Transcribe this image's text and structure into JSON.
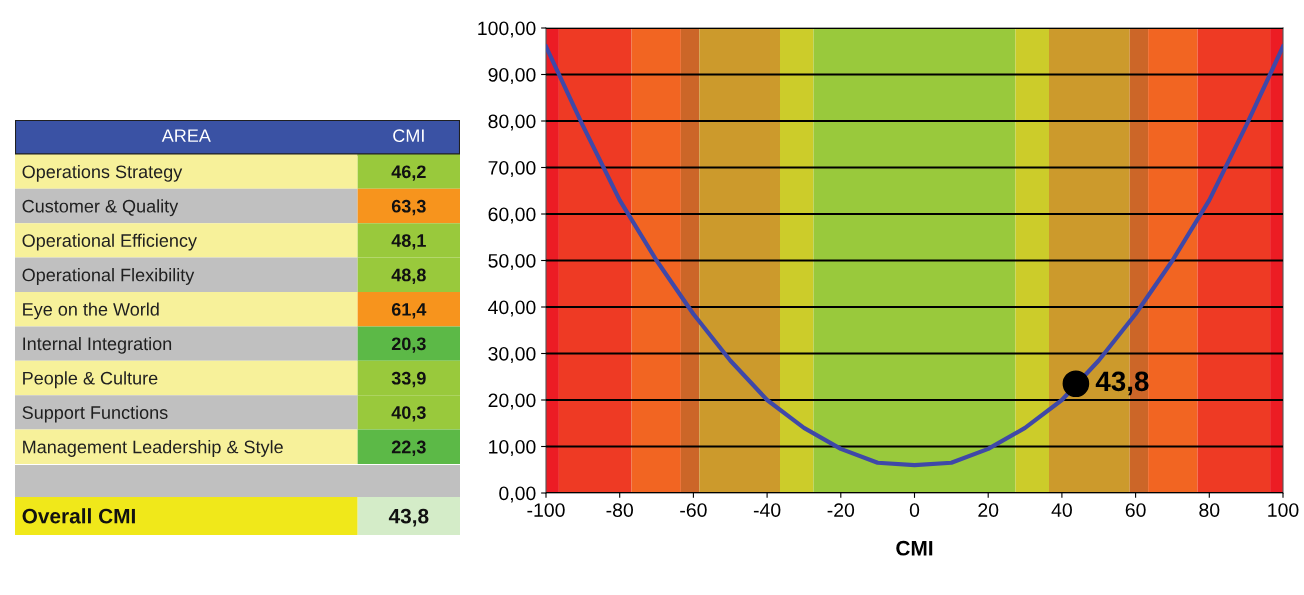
{
  "chart_data": [
    {
      "type": "heatmap",
      "ylabel": "AREA",
      "categories": [
        "CMI"
      ],
      "y_categories": [
        "Operations Strategy",
        "Customer & Quality",
        "Operational Efficiency",
        "Operational Flexibility",
        "Eye on the World",
        "Internal Integration",
        "People & Culture",
        "Support Functions",
        "Management Leadership & Style"
      ],
      "cells": [
        [
          46.2
        ],
        [
          63.3
        ],
        [
          48.1
        ],
        [
          48.8
        ],
        [
          61.4
        ],
        [
          20.3
        ],
        [
          33.9
        ],
        [
          40.3
        ],
        [
          22.3
        ]
      ],
      "cell_labels": [
        [
          "46,2"
        ],
        [
          "63,3"
        ],
        [
          "48,1"
        ],
        [
          "48,8"
        ],
        [
          "61,4"
        ],
        [
          "20,3"
        ],
        [
          "33,9"
        ],
        [
          "40,3"
        ],
        [
          "22,3"
        ]
      ]
    },
    {
      "type": "other",
      "annotations": [
        "Overall CMI",
        "43,8"
      ]
    },
    {
      "type": "line",
      "xlabel": "CMI",
      "x": [
        -100,
        -90,
        -80,
        -70,
        -60,
        -50,
        -40,
        -30,
        -20,
        -10,
        0,
        10,
        20,
        30,
        40,
        50,
        60,
        70,
        80,
        90,
        100
      ],
      "series": [
        {
          "type": "line",
          "color": "#3f48a8",
          "marker": "none",
          "line_style": "solid",
          "values": [
            96,
            79,
            63,
            50,
            38.5,
            28.5,
            20,
            14,
            9.5,
            6.5,
            6,
            6.5,
            9.5,
            14,
            20,
            28.5,
            38.5,
            50,
            63,
            79,
            96
          ]
        },
        {
          "type": "scatter",
          "x": [
            43.8
          ],
          "color": "#000000",
          "marker": "circle",
          "values": [
            23.5
          ]
        }
      ],
      "annotations": [
        {
          "text": "43,8",
          "x": 43.8,
          "y": 23.5
        }
      ],
      "bands": [
        {
          "axis": "x",
          "from": -100,
          "to": -96.5,
          "color": "#ec1c24"
        },
        {
          "axis": "x",
          "from": -96.5,
          "to": -76.8,
          "color": "#ee3a24"
        },
        {
          "axis": "x",
          "from": -76.8,
          "to": -63.4,
          "color": "#f26522"
        },
        {
          "axis": "x",
          "from": -63.4,
          "to": -58.4,
          "color": "#cc6628"
        },
        {
          "axis": "x",
          "from": -58.4,
          "to": -36.5,
          "color": "#cc9a2c"
        },
        {
          "axis": "x",
          "from": -36.5,
          "to": -27.4,
          "color": "#cccc2a"
        },
        {
          "axis": "x",
          "from": -27.4,
          "to": 27.4,
          "color": "#99c93c"
        },
        {
          "axis": "x",
          "from": 27.4,
          "to": 36.5,
          "color": "#cccc2a"
        },
        {
          "axis": "x",
          "from": 36.5,
          "to": 58.4,
          "color": "#cc9a2c"
        },
        {
          "axis": "x",
          "from": 58.4,
          "to": 63.4,
          "color": "#cc6628"
        },
        {
          "axis": "x",
          "from": 63.4,
          "to": 76.8,
          "color": "#f26522"
        },
        {
          "axis": "x",
          "from": 76.8,
          "to": 96.5,
          "color": "#ee3a24"
        },
        {
          "axis": "x",
          "from": 96.5,
          "to": 100,
          "color": "#ec1c24"
        }
      ],
      "xlim": [
        -100,
        100
      ],
      "ylim": [
        0,
        100
      ],
      "xticks": [
        -100,
        -80,
        -60,
        -40,
        -20,
        0,
        20,
        40,
        60,
        80,
        100
      ],
      "yticks": [
        {
          "value": 0,
          "label": "0,00"
        },
        {
          "value": 10,
          "label": "10,00"
        },
        {
          "value": 20,
          "label": "20,00"
        },
        {
          "value": 30,
          "label": "30,00"
        },
        {
          "value": 40,
          "label": "40,00"
        },
        {
          "value": 50,
          "label": "50,00"
        },
        {
          "value": 60,
          "label": "60,00"
        },
        {
          "value": 70,
          "label": "70,00"
        },
        {
          "value": 80,
          "label": "80,00"
        },
        {
          "value": 90,
          "label": "90,00"
        },
        {
          "value": 100,
          "label": "100,00"
        }
      ],
      "grid": "y"
    }
  ]
}
